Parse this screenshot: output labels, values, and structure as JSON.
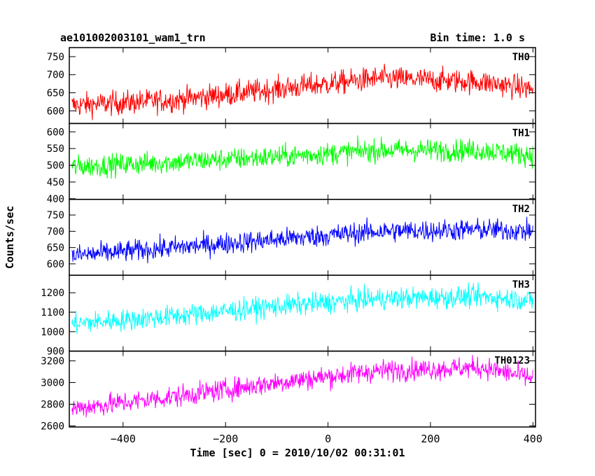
{
  "header": {
    "title": "ae101002003101_wam1_trn",
    "bin_time": "Bin time: 1.0 s"
  },
  "axes": {
    "xlabel": "Time [sec] 0 = 2010/10/02 00:31:01",
    "ylabel": "Counts/sec"
  },
  "chart_data": {
    "type": "line",
    "title": "ae101002003101_wam1_trn",
    "xlabel": "Time [sec] 0 = 2010/10/02 00:31:01",
    "ylabel": "Counts/sec",
    "xlim": [
      -505,
      405
    ],
    "xticks": [
      -400,
      -200,
      0,
      200,
      400
    ],
    "xtick_labels": [
      "−400",
      "−200",
      "0",
      "200",
      "400"
    ],
    "grid": false,
    "panels": [
      {
        "name": "TH0",
        "color": "#ff0000",
        "ylim": [
          565,
          775
        ],
        "yticks": [
          600,
          650,
          700,
          750
        ],
        "trend": [
          [
            -500,
            615
          ],
          [
            -300,
            630
          ],
          [
            -100,
            660
          ],
          [
            100,
            690
          ],
          [
            300,
            680
          ],
          [
            400,
            660
          ]
        ],
        "noise_amplitude": 30
      },
      {
        "name": "TH1",
        "color": "#00ff00",
        "ylim": [
          398,
          625
        ],
        "yticks": [
          400,
          450,
          500,
          550,
          600
        ],
        "trend": [
          [
            -500,
            495
          ],
          [
            -300,
            510
          ],
          [
            -100,
            525
          ],
          [
            100,
            545
          ],
          [
            300,
            545
          ],
          [
            400,
            530
          ]
        ],
        "noise_amplitude": 30
      },
      {
        "name": "TH2",
        "color": "#0000ff",
        "ylim": [
          565,
          798
        ],
        "yticks": [
          600,
          650,
          700,
          750
        ],
        "trend": [
          [
            -500,
            625
          ],
          [
            -300,
            650
          ],
          [
            -100,
            675
          ],
          [
            100,
            700
          ],
          [
            300,
            705
          ],
          [
            400,
            700
          ]
        ],
        "noise_amplitude": 30
      },
      {
        "name": "TH3",
        "color": "#00ffff",
        "ylim": [
          900,
          1290
        ],
        "yticks": [
          900,
          1000,
          1100,
          1200
        ],
        "trend": [
          [
            -500,
            1040
          ],
          [
            -300,
            1080
          ],
          [
            -100,
            1130
          ],
          [
            100,
            1170
          ],
          [
            300,
            1180
          ],
          [
            400,
            1160
          ]
        ],
        "noise_amplitude": 50
      },
      {
        "name": "TH0123",
        "color": "#ff00ff",
        "ylim": [
          2590,
          3290
        ],
        "yticks": [
          2600,
          2800,
          3000,
          3200
        ],
        "trend": [
          [
            -500,
            2760
          ],
          [
            -300,
            2870
          ],
          [
            -100,
            3000
          ],
          [
            100,
            3110
          ],
          [
            300,
            3140
          ],
          [
            400,
            3040
          ]
        ],
        "noise_amplitude": 90
      }
    ]
  }
}
